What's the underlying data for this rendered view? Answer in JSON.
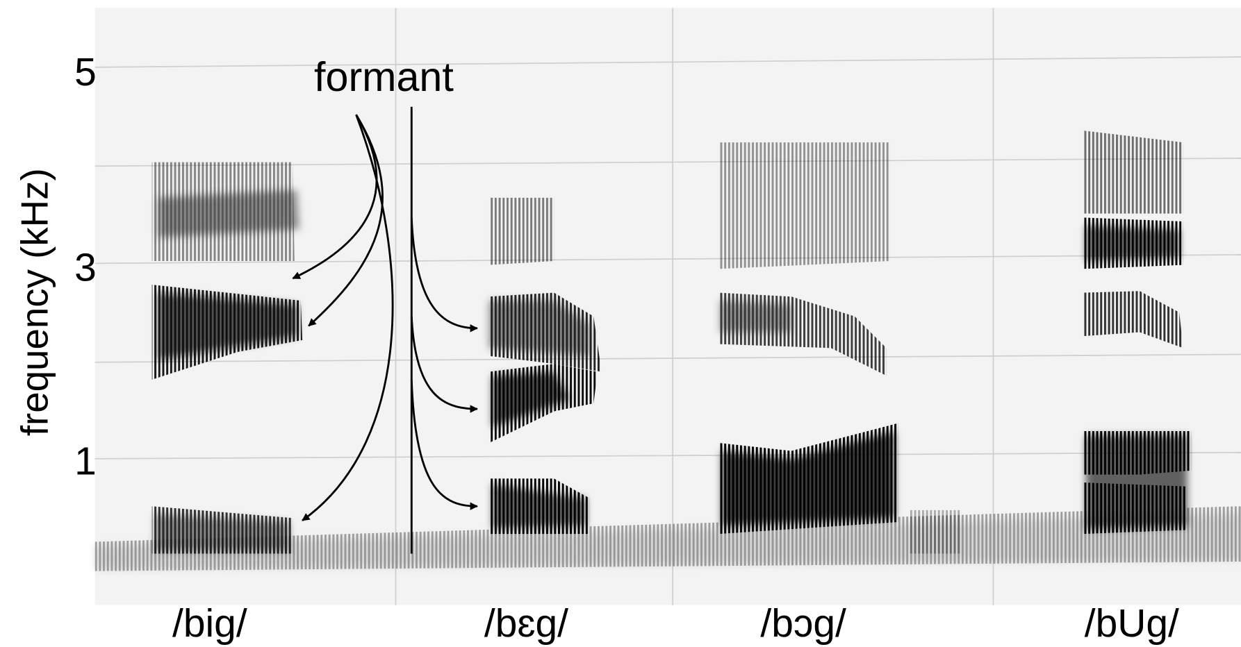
{
  "axis": {
    "label": "frequency (kHz)",
    "ticks": [
      "5",
      "3",
      "1"
    ]
  },
  "annotation": "formant",
  "words": [
    "/big/",
    "/bɛg/",
    "/bɔg/",
    "/bUg/"
  ]
}
